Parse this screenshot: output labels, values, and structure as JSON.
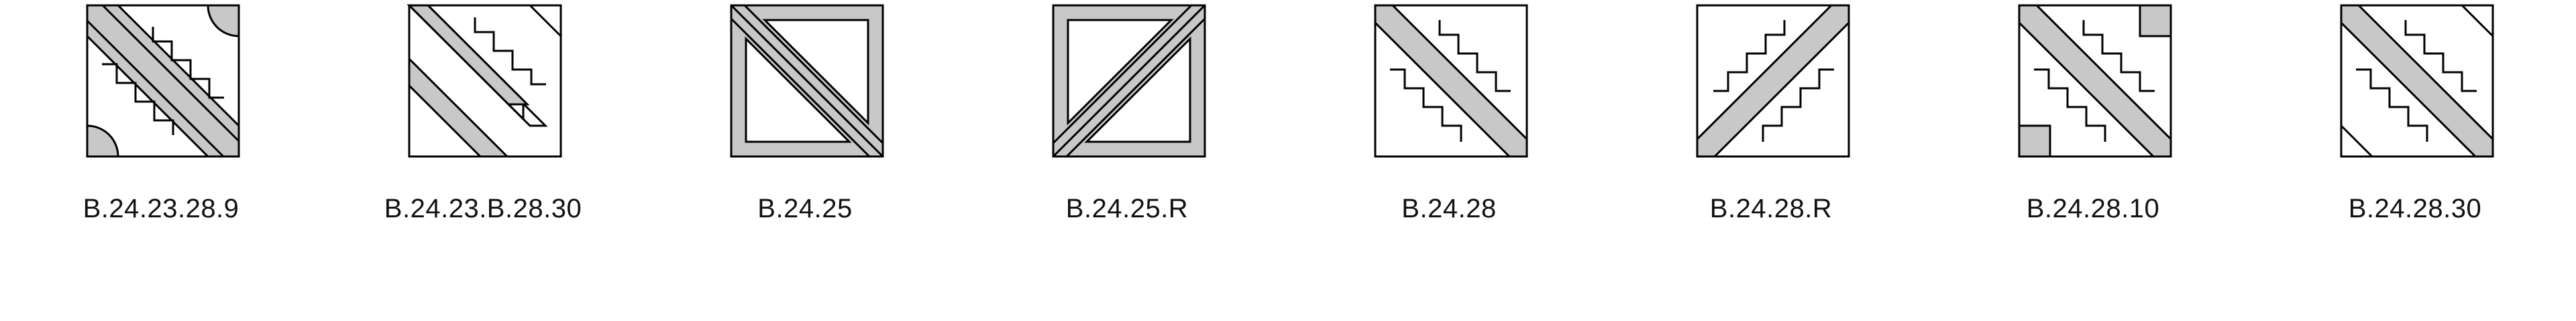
{
  "colors": {
    "fill": "#c8c8c8",
    "stroke": "#000000",
    "background": "#ffffff"
  },
  "tiles": [
    {
      "id": "tile-1",
      "label": "B.24.23.28.9"
    },
    {
      "id": "tile-2",
      "label": "B.24.23.B.28.30"
    },
    {
      "id": "tile-3",
      "label": "B.24.25"
    },
    {
      "id": "tile-4",
      "label": "B.24.25.R"
    },
    {
      "id": "tile-5",
      "label": "B.24.28"
    },
    {
      "id": "tile-6",
      "label": "B.24.28.R"
    },
    {
      "id": "tile-7",
      "label": "B.24.28.10"
    },
    {
      "id": "tile-8",
      "label": "B.24.28.30"
    }
  ]
}
